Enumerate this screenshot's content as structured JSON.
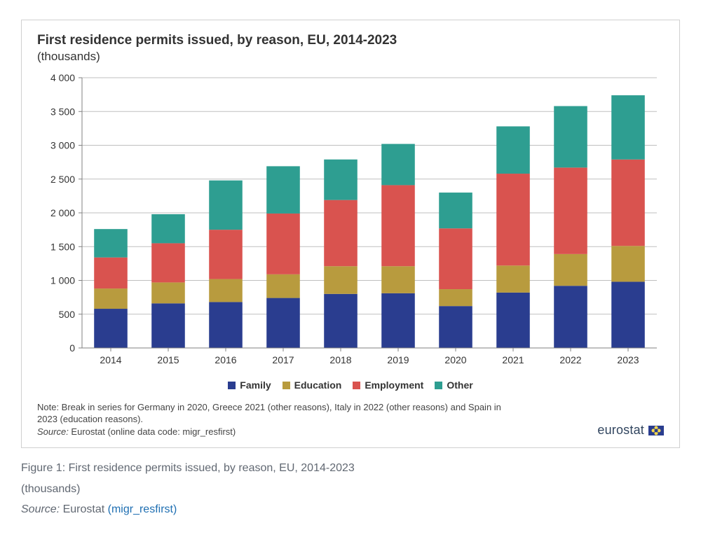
{
  "title": "First residence permits issued, by reason, EU, 2014-2023",
  "subtitle": "(thousands)",
  "note_line1": "Note: Break in series for Germany in 2020, Greece 2021 (other reasons), Italy in 2022 (other reasons) and Spain in",
  "note_line2": "2023 (education reasons).",
  "note_source_label": "Source:",
  "note_source_text": " Eurostat (online data code: migr_resfirst)",
  "eurostat_brand": "eurostat",
  "figure_caption": "Figure 1: First residence permits issued, by reason, EU, 2014-2023",
  "figure_subcaption": "(thousands)",
  "figure_source_label": "Source:",
  "figure_source_text": " Eurostat ",
  "figure_source_link_text": "(migr_resfirst)",
  "chart": {
    "type": "stacked-bar",
    "background_color": "#ffffff",
    "grid_color": "#bfbfbf",
    "axis_color": "#808080",
    "tick_font_size": 14,
    "tick_color": "#333333",
    "legend_font_size": 14,
    "bar_width_ratio": 0.58,
    "y": {
      "min": 0,
      "max": 4000,
      "step": 500,
      "labels": [
        "0",
        "500",
        "1 000",
        "1 500",
        "2 000",
        "2 500",
        "3 000",
        "3 500",
        "4 000"
      ]
    },
    "categories": [
      "2014",
      "2015",
      "2016",
      "2017",
      "2018",
      "2019",
      "2020",
      "2021",
      "2022",
      "2023"
    ],
    "series": [
      {
        "key": "family",
        "label": "Family",
        "color": "#2a3d8f"
      },
      {
        "key": "education",
        "label": "Education",
        "color": "#b89b3e"
      },
      {
        "key": "employment",
        "label": "Employment",
        "color": "#d9534f"
      },
      {
        "key": "other",
        "label": "Other",
        "color": "#2e9e91"
      }
    ],
    "data": {
      "family": [
        580,
        660,
        680,
        740,
        800,
        810,
        620,
        820,
        920,
        980
      ],
      "education": [
        300,
        310,
        340,
        350,
        410,
        400,
        250,
        400,
        470,
        530
      ],
      "employment": [
        460,
        580,
        730,
        900,
        980,
        1200,
        900,
        1360,
        1280,
        1280
      ],
      "other": [
        420,
        430,
        730,
        700,
        600,
        610,
        530,
        700,
        910,
        950
      ]
    }
  }
}
